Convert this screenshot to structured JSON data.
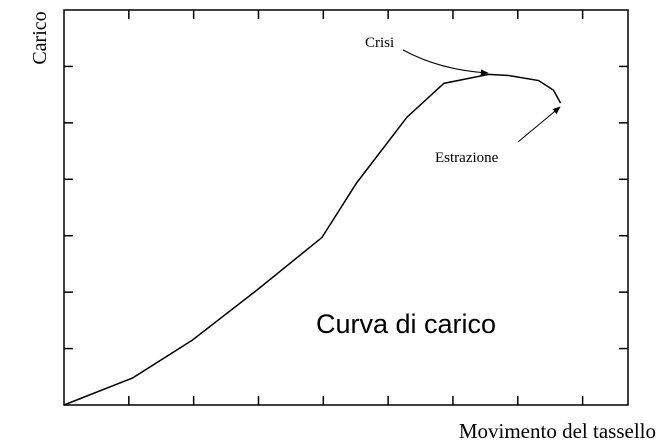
{
  "chart_data": {
    "type": "line",
    "x_label": "Movimento del tassello",
    "y_label": "Carico",
    "x": [
      0,
      1.06,
      1.98,
      2.98,
      3.98,
      4.51,
      5.29,
      5.86,
      6.55,
      6.86,
      7.32,
      7.55,
      7.66
    ],
    "series": [
      {
        "name": "Curva di carico",
        "color": "#000000",
        "values": [
          0,
          0.48,
          1.15,
          2.04,
          2.97,
          3.93,
          5.1,
          5.7,
          5.86,
          5.84,
          5.75,
          5.58,
          5.35
        ]
      }
    ],
    "xlim": [
      0,
      8.7
    ],
    "ylim": [
      0,
      7
    ],
    "xticks": [
      1,
      2,
      3,
      4,
      5,
      6,
      7,
      8
    ],
    "yticks": [
      1,
      2,
      3,
      4,
      5,
      6
    ],
    "annotations": [
      "Crisi",
      "Estrazione"
    ],
    "label_color": "#1a1a8c"
  }
}
